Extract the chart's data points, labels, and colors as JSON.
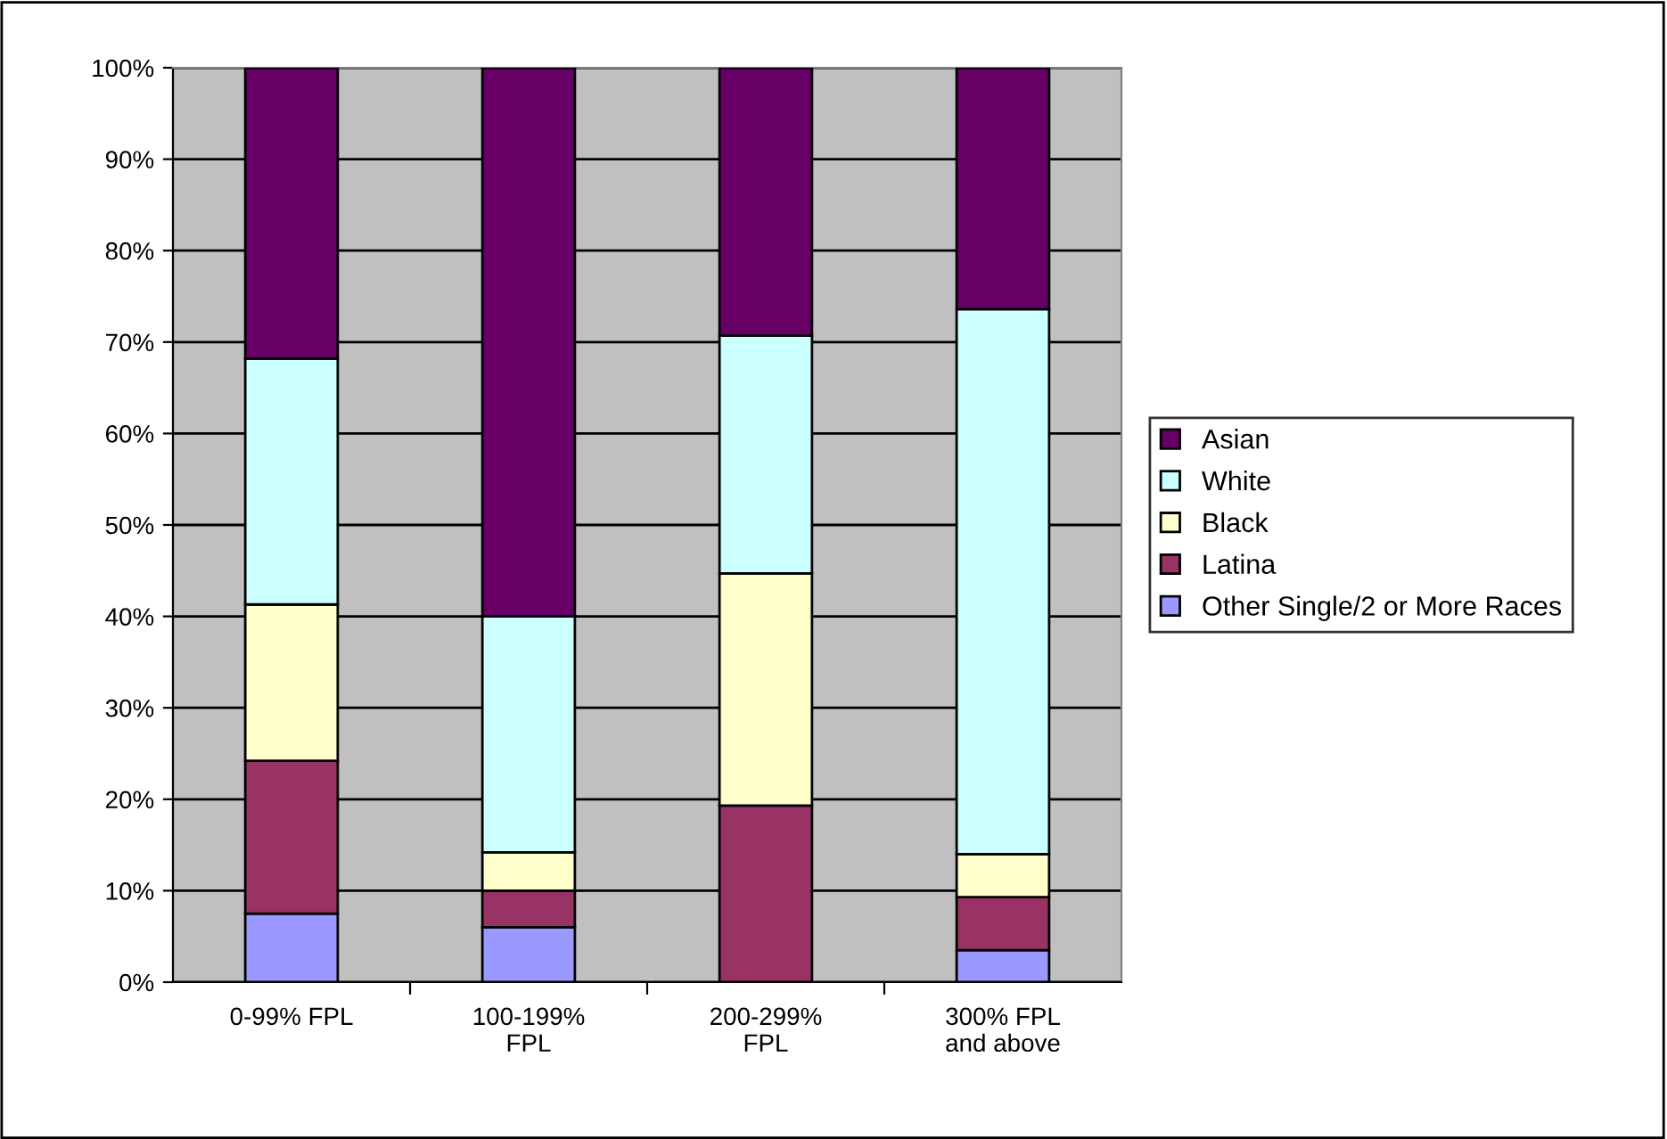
{
  "chart_data": {
    "type": "bar",
    "stacked": true,
    "categories": [
      "0-99% FPL",
      "100-199%\nFPL",
      "200-299%\nFPL",
      "300% FPL\nand above"
    ],
    "series": [
      {
        "name": "Other Single/2 or More Races",
        "color": "#9999ff",
        "values": [
          7.5,
          6.0,
          0,
          3.5
        ]
      },
      {
        "name": "Latina",
        "color": "#993366",
        "values": [
          16.7,
          4.0,
          19.3,
          5.8
        ]
      },
      {
        "name": "Black",
        "color": "#ffffcc",
        "values": [
          17.1,
          4.2,
          25.4,
          4.7
        ]
      },
      {
        "name": "White",
        "color": "#ccffff",
        "values": [
          26.9,
          25.8,
          26.0,
          59.6
        ]
      },
      {
        "name": "Asian",
        "color": "#660066",
        "values": [
          31.8,
          60.0,
          29.3,
          26.4
        ]
      }
    ],
    "ylim": [
      0,
      100
    ],
    "yticks": [
      {
        "value": 0,
        "label": "0%"
      },
      {
        "value": 10,
        "label": "10%"
      },
      {
        "value": 20,
        "label": "20%"
      },
      {
        "value": 30,
        "label": "30%"
      },
      {
        "value": 40,
        "label": "40%"
      },
      {
        "value": 50,
        "label": "50%"
      },
      {
        "value": 60,
        "label": "60%"
      },
      {
        "value": 70,
        "label": "70%"
      },
      {
        "value": 80,
        "label": "80%"
      },
      {
        "value": 90,
        "label": "90%"
      },
      {
        "value": 100,
        "label": "100%"
      }
    ],
    "grid": "y",
    "legend": "right"
  }
}
